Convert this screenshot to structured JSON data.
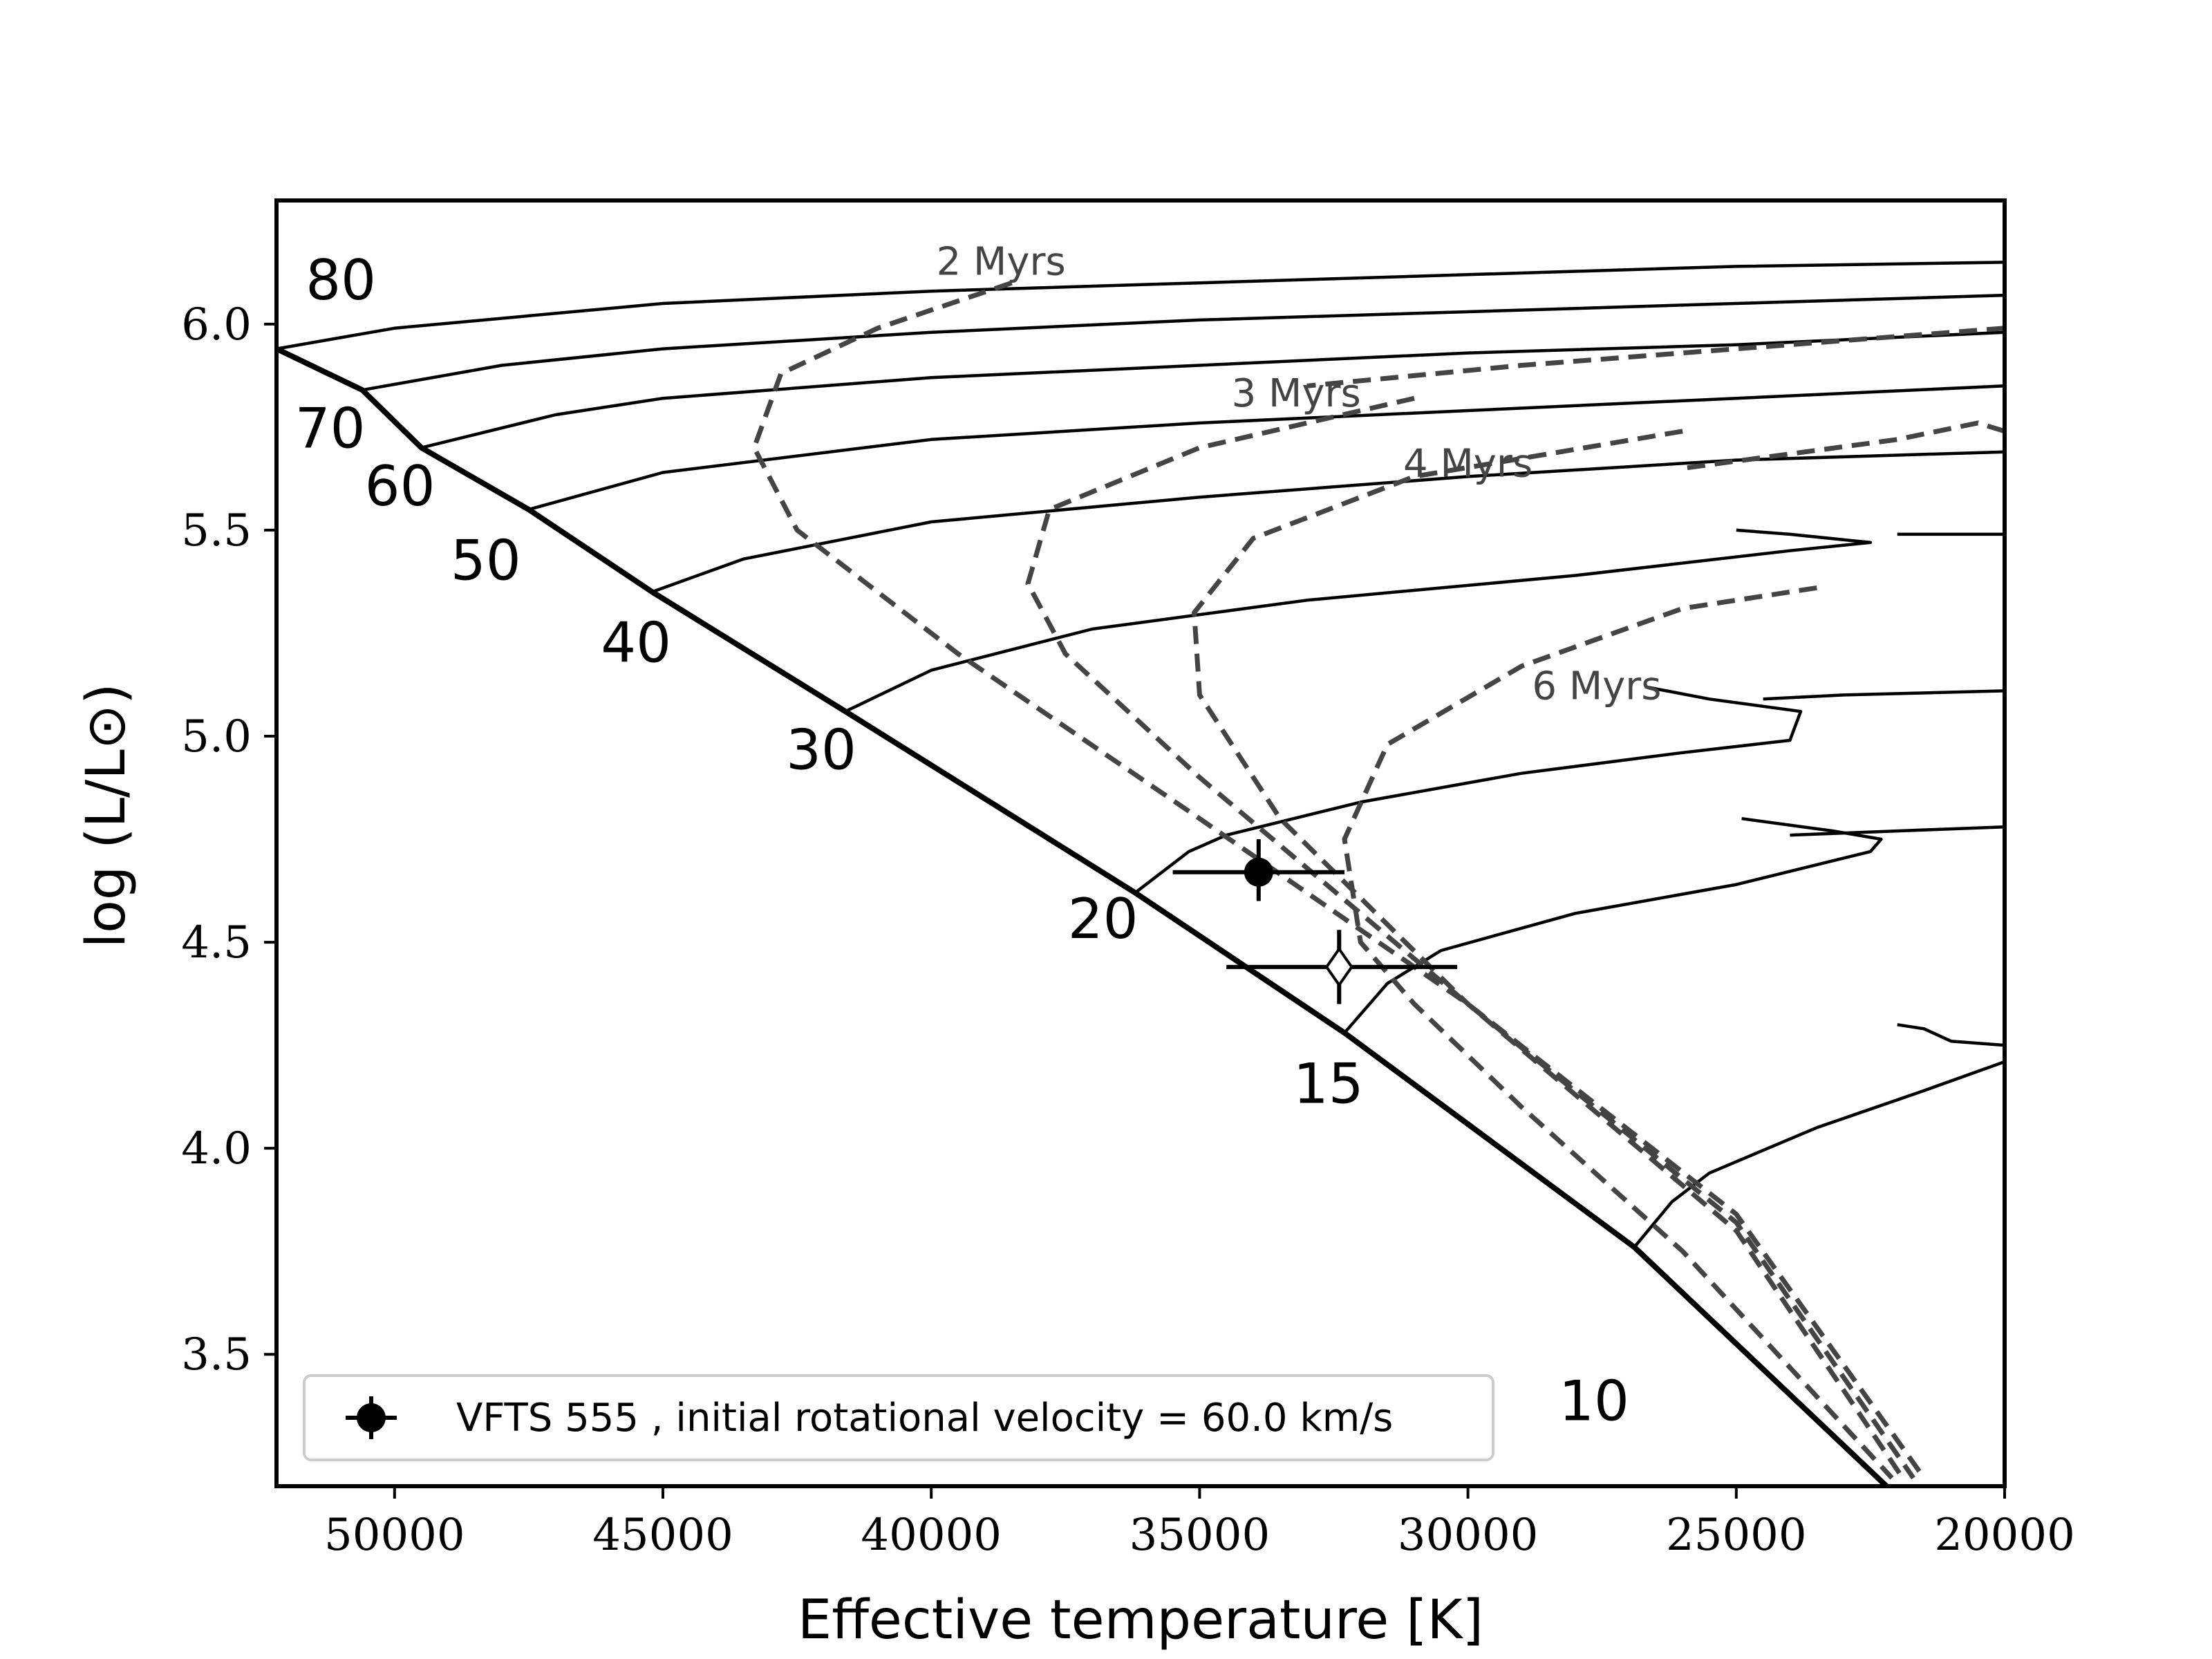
{
  "chart_data": {
    "type": "scatter",
    "title": "",
    "xlabel": "Effective temperature [K]",
    "ylabel": "log (L/L⊙)",
    "xlim": [
      52200,
      20000
    ],
    "ylim": [
      3.18,
      6.3
    ],
    "x_reversed": true,
    "x_ticks": [
      50000,
      45000,
      40000,
      35000,
      30000,
      25000,
      20000
    ],
    "y_ticks": [
      3.5,
      4.0,
      4.5,
      5.0,
      5.5,
      6.0
    ],
    "grid": false,
    "legend_position": "lower-left",
    "zams": {
      "style": "thick-solid",
      "points": [
        [
          52200,
          5.94
        ],
        [
          50600,
          5.84
        ],
        [
          49500,
          5.7
        ],
        [
          47500,
          5.55
        ],
        [
          45200,
          5.35
        ],
        [
          41600,
          5.06
        ],
        [
          36200,
          4.62
        ],
        [
          32300,
          4.28
        ],
        [
          26900,
          3.76
        ],
        [
          22200,
          3.18
        ]
      ]
    },
    "tracks": [
      {
        "mass_label": "80",
        "points": [
          [
            52200,
            5.94
          ],
          [
            50000,
            5.99
          ],
          [
            45000,
            6.05
          ],
          [
            40000,
            6.08
          ],
          [
            35000,
            6.1
          ],
          [
            30000,
            6.12
          ],
          [
            25000,
            6.14
          ],
          [
            20000,
            6.15
          ]
        ]
      },
      {
        "mass_label": "70",
        "points": [
          [
            50600,
            5.84
          ],
          [
            48000,
            5.9
          ],
          [
            45000,
            5.94
          ],
          [
            40000,
            5.98
          ],
          [
            35000,
            6.01
          ],
          [
            30000,
            6.03
          ],
          [
            25000,
            6.05
          ],
          [
            20000,
            6.07
          ]
        ]
      },
      {
        "mass_label": "60",
        "points": [
          [
            49500,
            5.7
          ],
          [
            47000,
            5.78
          ],
          [
            45000,
            5.82
          ],
          [
            40000,
            5.87
          ],
          [
            35000,
            5.9
          ],
          [
            30000,
            5.93
          ],
          [
            25000,
            5.95
          ],
          [
            20000,
            5.98
          ]
        ]
      },
      {
        "mass_label": "50",
        "points": [
          [
            47500,
            5.55
          ],
          [
            45000,
            5.64
          ],
          [
            40000,
            5.72
          ],
          [
            35000,
            5.76
          ],
          [
            30000,
            5.79
          ],
          [
            25000,
            5.82
          ],
          [
            20000,
            5.85
          ]
        ]
      },
      {
        "mass_label": "40",
        "points": [
          [
            45200,
            5.35
          ],
          [
            43500,
            5.43
          ],
          [
            40000,
            5.52
          ],
          [
            35000,
            5.58
          ],
          [
            30000,
            5.63
          ],
          [
            25000,
            5.67
          ],
          [
            20000,
            5.69
          ]
        ]
      },
      {
        "mass_label": "30",
        "points": [
          [
            41600,
            5.06
          ],
          [
            40000,
            5.16
          ],
          [
            37000,
            5.26
          ],
          [
            33000,
            5.33
          ],
          [
            28000,
            5.39
          ],
          [
            24000,
            5.45
          ],
          [
            22500,
            5.47
          ],
          [
            24000,
            5.49
          ],
          [
            25000,
            5.5
          ]
        ]
      },
      {
        "mass_label": "",
        "points": [
          [
            20000,
            5.49
          ],
          [
            22000,
            5.49
          ]
        ]
      },
      {
        "mass_label": "20",
        "points": [
          [
            36200,
            4.62
          ],
          [
            35200,
            4.72
          ],
          [
            34500,
            4.76
          ],
          [
            32000,
            4.84
          ],
          [
            29000,
            4.91
          ],
          [
            26000,
            4.96
          ],
          [
            24000,
            4.99
          ],
          [
            23800,
            5.06
          ],
          [
            25500,
            5.09
          ],
          [
            26700,
            5.12
          ]
        ]
      },
      {
        "mass_label": "",
        "points": [
          [
            20000,
            5.11
          ],
          [
            23000,
            5.1
          ],
          [
            24500,
            5.09
          ]
        ]
      },
      {
        "mass_label": "15",
        "points": [
          [
            32300,
            4.28
          ],
          [
            31500,
            4.4
          ],
          [
            30500,
            4.48
          ],
          [
            28000,
            4.57
          ],
          [
            25000,
            4.64
          ],
          [
            22500,
            4.72
          ],
          [
            22300,
            4.75
          ],
          [
            23200,
            4.77
          ],
          [
            24900,
            4.8
          ]
        ]
      },
      {
        "mass_label": "",
        "points": [
          [
            20000,
            4.78
          ],
          [
            22000,
            4.77
          ],
          [
            24000,
            4.76
          ]
        ]
      },
      {
        "mass_label": "10",
        "points": [
          [
            26900,
            3.76
          ],
          [
            26200,
            3.87
          ],
          [
            25500,
            3.94
          ],
          [
            23500,
            4.05
          ],
          [
            21500,
            4.14
          ],
          [
            20000,
            4.21
          ]
        ]
      },
      {
        "mass_label": "",
        "points": [
          [
            20000,
            4.25
          ],
          [
            21000,
            4.26
          ],
          [
            21500,
            4.29
          ],
          [
            22000,
            4.3
          ]
        ]
      }
    ],
    "isochrones": [
      {
        "label": "2 Myrs",
        "points": [
          [
            38500,
            6.1
          ],
          [
            41000,
            5.99
          ],
          [
            42800,
            5.88
          ],
          [
            43300,
            5.7
          ],
          [
            42500,
            5.5
          ],
          [
            39500,
            5.2
          ],
          [
            35000,
            4.8
          ],
          [
            30000,
            4.35
          ],
          [
            25000,
            3.84
          ],
          [
            21500,
            3.2
          ]
        ]
      },
      {
        "label": "3 Myrs",
        "points": [
          [
            31000,
            5.82
          ],
          [
            35000,
            5.7
          ],
          [
            37800,
            5.55
          ],
          [
            38200,
            5.37
          ],
          [
            37500,
            5.2
          ],
          [
            35000,
            4.9
          ],
          [
            30000,
            4.35
          ],
          [
            25000,
            3.82
          ],
          [
            21700,
            3.2
          ]
        ]
      },
      {
        "label": "4 Myrs",
        "points": [
          [
            26000,
            5.74
          ],
          [
            31000,
            5.63
          ],
          [
            34000,
            5.48
          ],
          [
            35100,
            5.3
          ],
          [
            35000,
            5.1
          ],
          [
            33500,
            4.8
          ],
          [
            30000,
            4.35
          ],
          [
            25000,
            3.8
          ],
          [
            21900,
            3.2
          ]
        ]
      },
      {
        "label": "",
        "points": [
          [
            20000,
            5.99
          ],
          [
            24000,
            5.95
          ],
          [
            29000,
            5.9
          ],
          [
            33000,
            5.85
          ]
        ]
      },
      {
        "label": "",
        "points": [
          [
            20000,
            5.74
          ],
          [
            20500,
            5.76
          ],
          [
            22000,
            5.72
          ],
          [
            26000,
            5.65
          ]
        ]
      },
      {
        "label": "6 Myrs",
        "points": [
          [
            23500,
            5.36
          ],
          [
            26000,
            5.31
          ],
          [
            29000,
            5.17
          ],
          [
            31500,
            4.98
          ],
          [
            32300,
            4.75
          ],
          [
            32000,
            4.5
          ],
          [
            31000,
            4.35
          ],
          [
            29000,
            4.1
          ],
          [
            26000,
            3.75
          ],
          [
            22100,
            3.2
          ]
        ]
      }
    ],
    "observed": {
      "label": "VFTS 555 , initial rotational velocity = 60.0 km/s",
      "teff": 33900,
      "teff_lo": 35500,
      "teff_hi": 32300,
      "logL": 4.67,
      "logL_lo": 4.6,
      "logL_hi": 4.75
    },
    "model_point": {
      "teff": 32400,
      "teff_lo": 34500,
      "teff_hi": 30200,
      "logL": 4.44,
      "logL_lo": 4.35,
      "logL_hi": 4.53
    }
  }
}
